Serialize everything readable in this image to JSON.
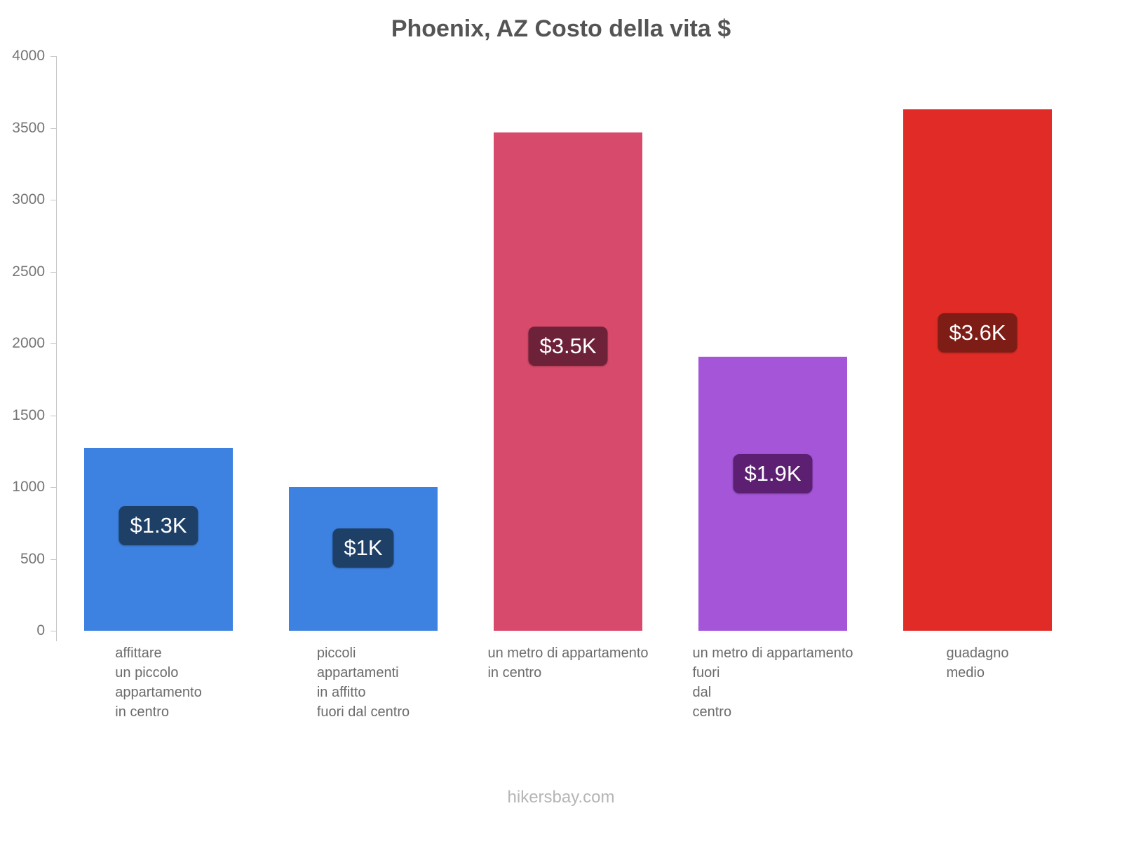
{
  "chart": {
    "title": "Phoenix, AZ Costo della vita $",
    "footer": "hikersbay.com"
  },
  "chart_data": {
    "type": "bar",
    "title": "Phoenix, AZ Costo della vita $",
    "categories": [
      [
        "affittare",
        "un piccolo",
        "appartamento",
        "in centro"
      ],
      [
        "piccoli",
        "appartamenti",
        "in affitto",
        "fuori dal centro"
      ],
      [
        "un metro di appartamento",
        "in centro"
      ],
      [
        "un metro di appartamento",
        "fuori",
        "dal",
        "centro"
      ],
      [
        "guadagno",
        "medio"
      ]
    ],
    "values": [
      1275,
      1000,
      3470,
      1905,
      3630
    ],
    "labels": [
      "$1.3K",
      "$1K",
      "$3.5K",
      "$1.9K",
      "$3.6K"
    ],
    "bar_colors": [
      "#3d82e0",
      "#3d82e0",
      "#d84a6b",
      "#a455d8",
      "#e12b26"
    ],
    "label_bg_colors": [
      "#1e3f66",
      "#1e3f66",
      "#6e2239",
      "#5c1f72",
      "#7d1d16"
    ],
    "xlabel": "",
    "ylabel": "",
    "ylim": [
      0,
      4000
    ],
    "ytick_step": 500,
    "grid": false,
    "legend": null,
    "watermark": "hikersbay.com"
  }
}
